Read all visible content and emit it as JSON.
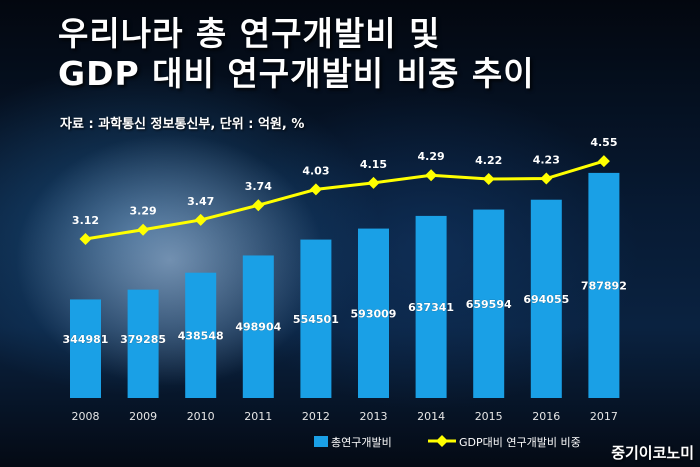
{
  "header": {
    "title_line1": "우리나라 총 연구개발비 및",
    "title_line2": "GDP 대비 연구개발비 비중 추이",
    "source": "자료 : 과학통신 정보통신부, 단위 : 억원, %"
  },
  "watermark": "중기이코노미",
  "colors": {
    "bar": "#1aa0e6",
    "line": "#ffff00",
    "label": "#ffffff",
    "axis_text": "#e6e6e6"
  },
  "chart_data": {
    "type": "bar",
    "categories": [
      "2008",
      "2009",
      "2010",
      "2011",
      "2012",
      "2013",
      "2014",
      "2015",
      "2016",
      "2017"
    ],
    "series": [
      {
        "name": "총연구개발비",
        "type": "bar",
        "values": [
          344981,
          379285,
          438548,
          498904,
          554501,
          593009,
          637341,
          659594,
          694055,
          787892
        ]
      },
      {
        "name": "GDP대비 연구개발비 비중",
        "type": "line",
        "values": [
          3.12,
          3.29,
          3.47,
          3.74,
          4.03,
          4.15,
          4.29,
          4.22,
          4.23,
          4.55
        ]
      }
    ],
    "legend_position": "bottom-right",
    "grid": false
  }
}
